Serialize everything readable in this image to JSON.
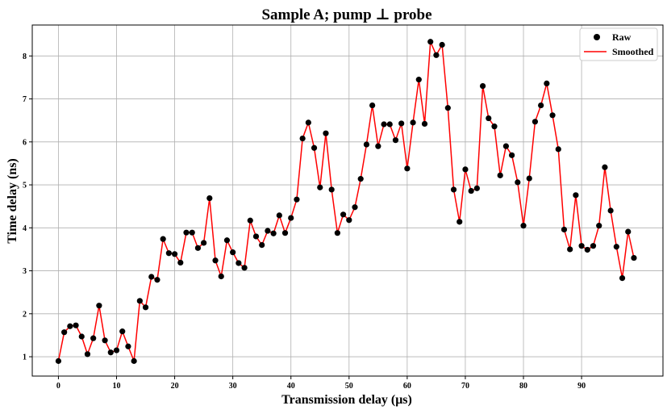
{
  "chart_data": {
    "type": "line",
    "title": "Sample A; pump ⊥ probe",
    "xlabel": "Transmission delay (μs)",
    "ylabel": "Time delay (ns)",
    "xlim": [
      -4.5,
      104
    ],
    "ylim": [
      0.55,
      8.72
    ],
    "xticks": [
      0,
      10,
      20,
      30,
      40,
      50,
      60,
      70,
      80,
      90
    ],
    "yticks": [
      1,
      2,
      3,
      4,
      5,
      6,
      7,
      8
    ],
    "grid": true,
    "legend_position": "top-right",
    "x": [
      0,
      1,
      2,
      3,
      4,
      5,
      6,
      7,
      8,
      9,
      10,
      11,
      12,
      13,
      14,
      15,
      16,
      17,
      18,
      19,
      20,
      21,
      22,
      23,
      24,
      25,
      26,
      27,
      28,
      29,
      30,
      31,
      32,
      33,
      34,
      35,
      36,
      37,
      38,
      39,
      40,
      41,
      42,
      43,
      44,
      45,
      46,
      47,
      48,
      49,
      50,
      51,
      52,
      53,
      54,
      55,
      56,
      57,
      58,
      59,
      60,
      61,
      62,
      63,
      64,
      65,
      66,
      67,
      68,
      69,
      70,
      71,
      72,
      73,
      74,
      75,
      76,
      77,
      78,
      79,
      80,
      81,
      82,
      83,
      84,
      85,
      86,
      87,
      88,
      89,
      90,
      91,
      92,
      93,
      94,
      95,
      96,
      97,
      98,
      99
    ],
    "series": [
      {
        "name": "Raw",
        "marker": "circle",
        "color": "#000000",
        "values": [
          0.9,
          1.57,
          1.71,
          1.73,
          1.47,
          1.06,
          1.43,
          2.19,
          1.38,
          1.1,
          1.15,
          1.59,
          1.24,
          0.9,
          2.3,
          2.15,
          2.86,
          2.79,
          3.74,
          3.41,
          3.39,
          3.19,
          3.89,
          3.89,
          3.53,
          3.65,
          4.69,
          3.24,
          2.87,
          3.71,
          3.43,
          3.18,
          3.07,
          4.17,
          3.8,
          3.6,
          3.93,
          3.87,
          4.29,
          3.88,
          4.23,
          4.66,
          6.08,
          6.45,
          5.86,
          4.94,
          6.2,
          4.89,
          3.88,
          4.31,
          4.18,
          4.48,
          5.14,
          5.94,
          6.85,
          5.9,
          6.41,
          6.41,
          6.04,
          6.43,
          5.38,
          6.45,
          7.45,
          6.42,
          8.33,
          8.02,
          8.26,
          6.79,
          4.89,
          4.14,
          5.36,
          4.86,
          4.92,
          7.3,
          6.55,
          6.36,
          5.22,
          5.9,
          5.69,
          5.06,
          4.05,
          5.15,
          6.47,
          6.85,
          7.36,
          6.62,
          5.83,
          3.96,
          3.5,
          4.76,
          3.58,
          3.49,
          3.58,
          4.05,
          5.41,
          4.4,
          3.56,
          2.83,
          3.91,
          3.3
        ]
      },
      {
        "name": "Smoothed",
        "marker": "line",
        "color": "#ff0000",
        "values": [
          0.9,
          1.57,
          1.71,
          1.73,
          1.47,
          1.06,
          1.43,
          2.19,
          1.38,
          1.1,
          1.15,
          1.59,
          1.24,
          0.9,
          2.3,
          2.15,
          2.86,
          2.79,
          3.74,
          3.41,
          3.39,
          3.19,
          3.89,
          3.89,
          3.53,
          3.65,
          4.69,
          3.24,
          2.87,
          3.71,
          3.43,
          3.18,
          3.07,
          4.17,
          3.8,
          3.6,
          3.93,
          3.87,
          4.29,
          3.88,
          4.23,
          4.66,
          6.08,
          6.45,
          5.86,
          4.94,
          6.2,
          4.89,
          3.88,
          4.31,
          4.18,
          4.48,
          5.14,
          5.94,
          6.85,
          5.9,
          6.41,
          6.41,
          6.04,
          6.43,
          5.38,
          6.45,
          7.45,
          6.42,
          8.33,
          8.02,
          8.26,
          6.79,
          4.89,
          4.14,
          5.36,
          4.86,
          4.92,
          7.3,
          6.55,
          6.36,
          5.22,
          5.9,
          5.69,
          5.06,
          4.05,
          5.15,
          6.47,
          6.85,
          7.36,
          6.62,
          5.83,
          3.96,
          3.5,
          4.76,
          3.58,
          3.49,
          3.58,
          4.05,
          5.41,
          4.4,
          3.56,
          2.83,
          3.91,
          3.3
        ]
      }
    ]
  }
}
